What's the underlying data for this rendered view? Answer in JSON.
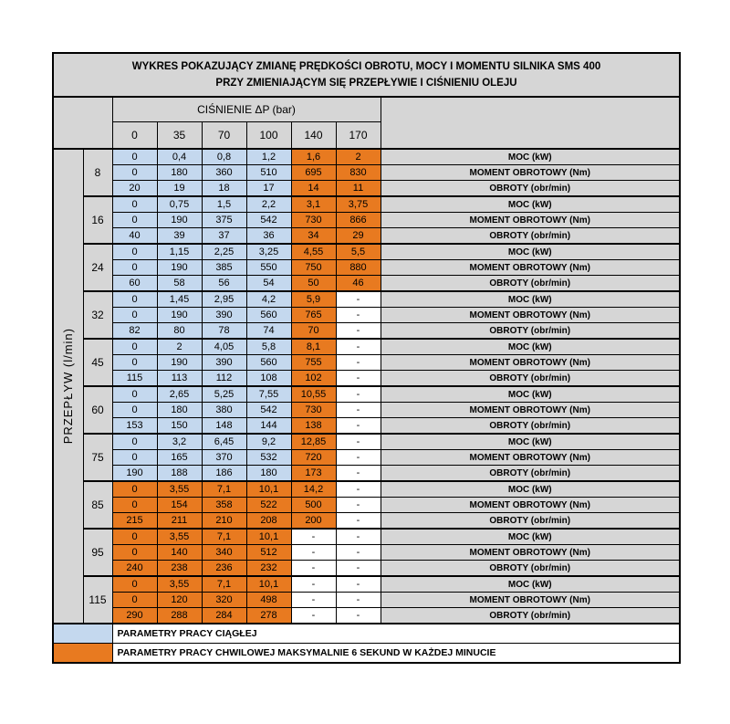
{
  "chart_data": {
    "type": "table",
    "title_line1": "WYKRES POKAZUJĄCY ZMIANĘ PRĘDKOŚCI OBROTU, MOCY I MOMENTU SILNIKA SMS 400",
    "title_line2": "PRZY ZMIENIAJĄCYM SIĘ PRZEPŁYWIE I CIŚNIENIU OLEJU",
    "pressure_header": "CIŚNIENIE ΔP (bar)",
    "pressure_columns": [
      "0",
      "35",
      "70",
      "100",
      "140",
      "170"
    ],
    "flow_axis_label": "PRZEPŁYW (l/min)",
    "row_labels": [
      "MOC (kW)",
      "MOMENT OBROTOWY (Nm)",
      "OBROTY (obr/min)"
    ],
    "colors": {
      "continuous_fill": "#c4d8ee",
      "momentary_fill": "#e87a20",
      "header_fill": "#d6d6d6",
      "border": "#000000"
    },
    "legend": [
      {
        "color": "#c4d8ee",
        "label": "PARAMETRY PRACY CIĄGŁEJ"
      },
      {
        "color": "#e87a20",
        "label": "PARAMETRY PRACY CHWILOWEJ MAKSYMALNIE 6 SEKUND W KAŻDEJ MINUCIE"
      }
    ],
    "groups": [
      {
        "flow": "8",
        "fills": [
          "b",
          "b",
          "b",
          "b",
          "o",
          "o"
        ],
        "rows": [
          {
            "values": [
              "0",
              "0,4",
              "0,8",
              "1,2",
              "1,6",
              "2"
            ]
          },
          {
            "values": [
              "0",
              "180",
              "360",
              "510",
              "695",
              "830"
            ]
          },
          {
            "values": [
              "20",
              "19",
              "18",
              "17",
              "14",
              "11"
            ]
          }
        ]
      },
      {
        "flow": "16",
        "fills": [
          "b",
          "b",
          "b",
          "b",
          "o",
          "o"
        ],
        "rows": [
          {
            "values": [
              "0",
              "0,75",
              "1,5",
              "2,2",
              "3,1",
              "3,75"
            ]
          },
          {
            "values": [
              "0",
              "190",
              "375",
              "542",
              "730",
              "866"
            ]
          },
          {
            "values": [
              "40",
              "39",
              "37",
              "36",
              "34",
              "29"
            ]
          }
        ]
      },
      {
        "flow": "24",
        "fills": [
          "b",
          "b",
          "b",
          "b",
          "o",
          "o"
        ],
        "rows": [
          {
            "values": [
              "0",
              "1,15",
              "2,25",
              "3,25",
              "4,55",
              "5,5"
            ]
          },
          {
            "values": [
              "0",
              "190",
              "385",
              "550",
              "750",
              "880"
            ]
          },
          {
            "values": [
              "60",
              "58",
              "56",
              "54",
              "50",
              "46"
            ]
          }
        ]
      },
      {
        "flow": "32",
        "fills": [
          "b",
          "b",
          "b",
          "b",
          "o",
          "w"
        ],
        "rows": [
          {
            "values": [
              "0",
              "1,45",
              "2,95",
              "4,2",
              "5,9",
              "-"
            ]
          },
          {
            "values": [
              "0",
              "190",
              "390",
              "560",
              "765",
              "-"
            ]
          },
          {
            "values": [
              "82",
              "80",
              "78",
              "74",
              "70",
              "-"
            ]
          }
        ]
      },
      {
        "flow": "45",
        "fills": [
          "b",
          "b",
          "b",
          "b",
          "o",
          "w"
        ],
        "rows": [
          {
            "values": [
              "0",
              "2",
              "4,05",
              "5,8",
              "8,1",
              "-"
            ]
          },
          {
            "values": [
              "0",
              "190",
              "390",
              "560",
              "755",
              "-"
            ]
          },
          {
            "values": [
              "115",
              "113",
              "112",
              "108",
              "102",
              "-"
            ]
          }
        ]
      },
      {
        "flow": "60",
        "fills": [
          "b",
          "b",
          "b",
          "b",
          "o",
          "w"
        ],
        "rows": [
          {
            "values": [
              "0",
              "2,65",
              "5,25",
              "7,55",
              "10,55",
              "-"
            ]
          },
          {
            "values": [
              "0",
              "180",
              "380",
              "542",
              "730",
              "-"
            ]
          },
          {
            "values": [
              "153",
              "150",
              "148",
              "144",
              "138",
              "-"
            ]
          }
        ]
      },
      {
        "flow": "75",
        "fills": [
          "b",
          "b",
          "b",
          "b",
          "o",
          "w"
        ],
        "rows": [
          {
            "values": [
              "0",
              "3,2",
              "6,45",
              "9,2",
              "12,85",
              "-"
            ]
          },
          {
            "values": [
              "0",
              "165",
              "370",
              "532",
              "720",
              "-"
            ]
          },
          {
            "values": [
              "190",
              "188",
              "186",
              "180",
              "173",
              "-"
            ]
          }
        ]
      },
      {
        "flow": "85",
        "fills": [
          "o",
          "o",
          "o",
          "o",
          "o",
          "w"
        ],
        "rows": [
          {
            "values": [
              "0",
              "3,55",
              "7,1",
              "10,1",
              "14,2",
              "-"
            ]
          },
          {
            "values": [
              "0",
              "154",
              "358",
              "522",
              "500",
              "-"
            ]
          },
          {
            "values": [
              "215",
              "211",
              "210",
              "208",
              "200",
              "-"
            ]
          }
        ]
      },
      {
        "flow": "95",
        "fills": [
          "o",
          "o",
          "o",
          "o",
          "w",
          "w"
        ],
        "rows": [
          {
            "values": [
              "0",
              "3,55",
              "7,1",
              "10,1",
              "-",
              "-"
            ]
          },
          {
            "values": [
              "0",
              "140",
              "340",
              "512",
              "-",
              "-"
            ]
          },
          {
            "values": [
              "240",
              "238",
              "236",
              "232",
              "-",
              "-"
            ]
          }
        ]
      },
      {
        "flow": "115",
        "fills": [
          "o",
          "o",
          "o",
          "o",
          "w",
          "w"
        ],
        "rows": [
          {
            "values": [
              "0",
              "3,55",
              "7,1",
              "10,1",
              "-",
              "-"
            ]
          },
          {
            "values": [
              "0",
              "120",
              "320",
              "498",
              "-",
              "-"
            ]
          },
          {
            "values": [
              "290",
              "288",
              "284",
              "278",
              "-",
              "-"
            ]
          }
        ]
      }
    ]
  }
}
